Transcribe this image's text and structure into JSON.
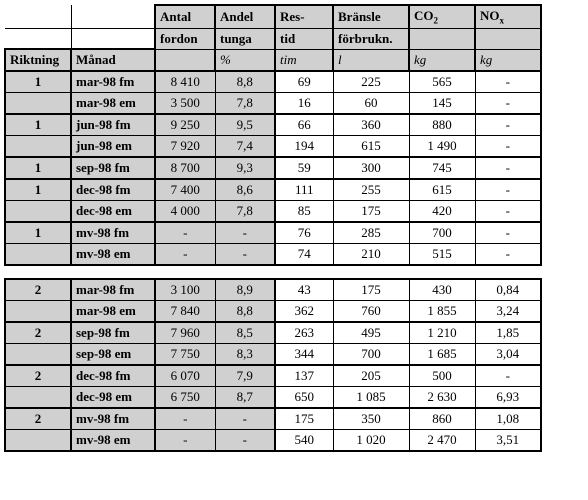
{
  "headers": {
    "riktning": "Riktning",
    "manad": "Månad",
    "antal1": "Antal",
    "antal2": "fordon",
    "andel1": "Andel",
    "andel2": "tunga",
    "andel_unit": "%",
    "res1": "Res-",
    "res2": "tid",
    "res_unit": "tim",
    "bransle1": "Bränsle",
    "bransle2": "förbrukn.",
    "bransle_unit": "l",
    "co2": "CO",
    "co2_sub": "2",
    "co2_unit": "kg",
    "nox": "NO",
    "nox_sub": "x",
    "nox_unit": "kg"
  },
  "t1_rows": [
    {
      "rikt": "1",
      "manad": "mar-98 fm",
      "antal": "8 410",
      "andel": "8,8",
      "res": "69",
      "bransle": "225",
      "co2": "565",
      "nox": "-"
    },
    {
      "rikt": "",
      "manad": "mar-98 em",
      "antal": "3 500",
      "andel": "7,8",
      "res": "16",
      "bransle": "60",
      "co2": "145",
      "nox": "-"
    },
    {
      "rikt": "1",
      "manad": "jun-98 fm",
      "antal": "9 250",
      "andel": "9,5",
      "res": "66",
      "bransle": "360",
      "co2": "880",
      "nox": "-"
    },
    {
      "rikt": "",
      "manad": "jun-98 em",
      "antal": "7 920",
      "andel": "7,4",
      "res": "194",
      "bransle": "615",
      "co2": "1 490",
      "nox": "-"
    },
    {
      "rikt": "1",
      "manad": "sep-98 fm",
      "antal": "8 700",
      "andel": "9,3",
      "res": "59",
      "bransle": "300",
      "co2": "745",
      "nox": "-"
    },
    {
      "rikt": "1",
      "manad": "dec-98 fm",
      "antal": "7 400",
      "andel": "8,6",
      "res": "111",
      "bransle": "255",
      "co2": "615",
      "nox": "-"
    },
    {
      "rikt": "",
      "manad": "dec-98 em",
      "antal": "4 000",
      "andel": "7,8",
      "res": "85",
      "bransle": "175",
      "co2": "420",
      "nox": "-"
    },
    {
      "rikt": "1",
      "manad": "mv-98 fm",
      "antal": "-",
      "andel": "-",
      "res": "76",
      "bransle": "285",
      "co2": "700",
      "nox": "-"
    },
    {
      "rikt": "",
      "manad": "mv-98 em",
      "antal": "-",
      "andel": "-",
      "res": "74",
      "bransle": "210",
      "co2": "515",
      "nox": "-"
    }
  ],
  "t2_rows": [
    {
      "rikt": "2",
      "manad": "mar-98 fm",
      "antal": "3 100",
      "andel": "8,9",
      "res": "43",
      "bransle": "175",
      "co2": "430",
      "nox": "0,84"
    },
    {
      "rikt": "",
      "manad": "mar-98 em",
      "antal": "7 840",
      "andel": "8,8",
      "res": "362",
      "bransle": "760",
      "co2": "1 855",
      "nox": "3,24"
    },
    {
      "rikt": "2",
      "manad": "sep-98 fm",
      "antal": "7 960",
      "andel": "8,5",
      "res": "263",
      "bransle": "495",
      "co2": "1 210",
      "nox": "1,85"
    },
    {
      "rikt": "",
      "manad": "sep-98 em",
      "antal": "7 750",
      "andel": "8,3",
      "res": "344",
      "bransle": "700",
      "co2": "1 685",
      "nox": "3,04"
    },
    {
      "rikt": "2",
      "manad": "dec-98 fm",
      "antal": "6 070",
      "andel": "7,9",
      "res": "137",
      "bransle": "205",
      "co2": "500",
      "nox": "-"
    },
    {
      "rikt": "",
      "manad": "dec-98 em",
      "antal": "6 750",
      "andel": "8,7",
      "res": "650",
      "bransle": "1 085",
      "co2": "2 630",
      "nox": "6,93"
    },
    {
      "rikt": "2",
      "manad": "mv-98 fm",
      "antal": "-",
      "andel": "-",
      "res": "175",
      "bransle": "350",
      "co2": "860",
      "nox": "1,08"
    },
    {
      "rikt": "",
      "manad": "mv-98 em",
      "antal": "-",
      "andel": "-",
      "res": "540",
      "bransle": "1 020",
      "co2": "2 470",
      "nox": "3,51"
    }
  ],
  "t1_group_starts": [
    0,
    2,
    4,
    5,
    7
  ],
  "t2_group_starts": [
    0,
    2,
    4,
    6
  ]
}
